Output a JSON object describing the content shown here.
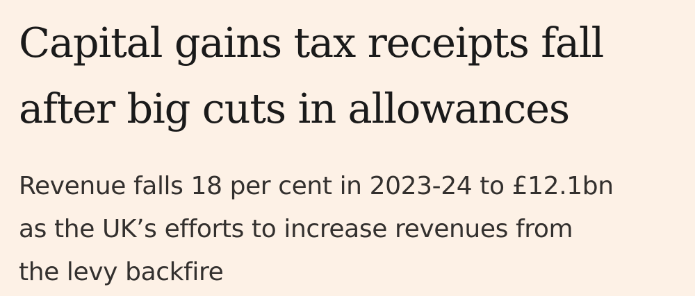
{
  "article": {
    "headline_lines": [
      "Capital gains tax receipts fall",
      "after big cuts in allowances"
    ],
    "standfirst_lines": [
      "Revenue falls 18 per cent in 2023-24 to £12.1bn",
      "as the UK’s efforts to increase revenues from",
      "the levy backfire"
    ]
  },
  "colors": {
    "background": "#fdf1e6",
    "headline": "#1a1a1a",
    "standfirst": "#33302e"
  }
}
